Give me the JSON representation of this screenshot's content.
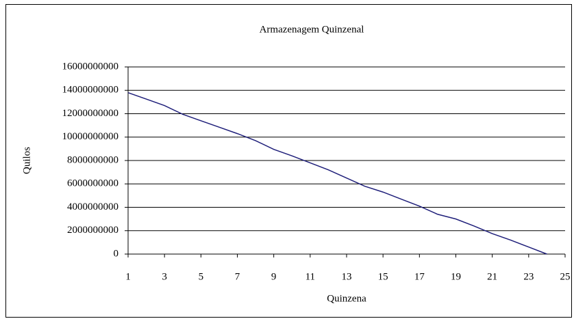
{
  "chart_data": {
    "type": "line",
    "title": "Armazenagem Quinzenal",
    "x_label": "Quinzena",
    "y_label": "Quilos",
    "x": [
      1,
      2,
      3,
      4,
      5,
      6,
      7,
      8,
      9,
      10,
      11,
      12,
      13,
      14,
      15,
      16,
      17,
      18,
      19,
      20,
      21,
      22,
      23,
      24
    ],
    "series": [
      {
        "name": "Armazenagem",
        "color": "#1f1f7a",
        "values": [
          13800000000,
          13250000000,
          12700000000,
          11950000000,
          11400000000,
          10850000000,
          10300000000,
          9700000000,
          8950000000,
          8400000000,
          7800000000,
          7200000000,
          6500000000,
          5800000000,
          5300000000,
          4700000000,
          4100000000,
          3400000000,
          3000000000,
          2400000000,
          1750000000,
          1200000000,
          600000000,
          0
        ]
      }
    ],
    "xlim": [
      1,
      25
    ],
    "xticks": [
      1,
      3,
      5,
      7,
      9,
      11,
      13,
      15,
      17,
      19,
      21,
      23,
      25
    ],
    "ylim": [
      0,
      16000000000
    ],
    "yticks": [
      0,
      2000000000,
      4000000000,
      6000000000,
      8000000000,
      10000000000,
      12000000000,
      14000000000,
      16000000000
    ],
    "grid": true
  }
}
